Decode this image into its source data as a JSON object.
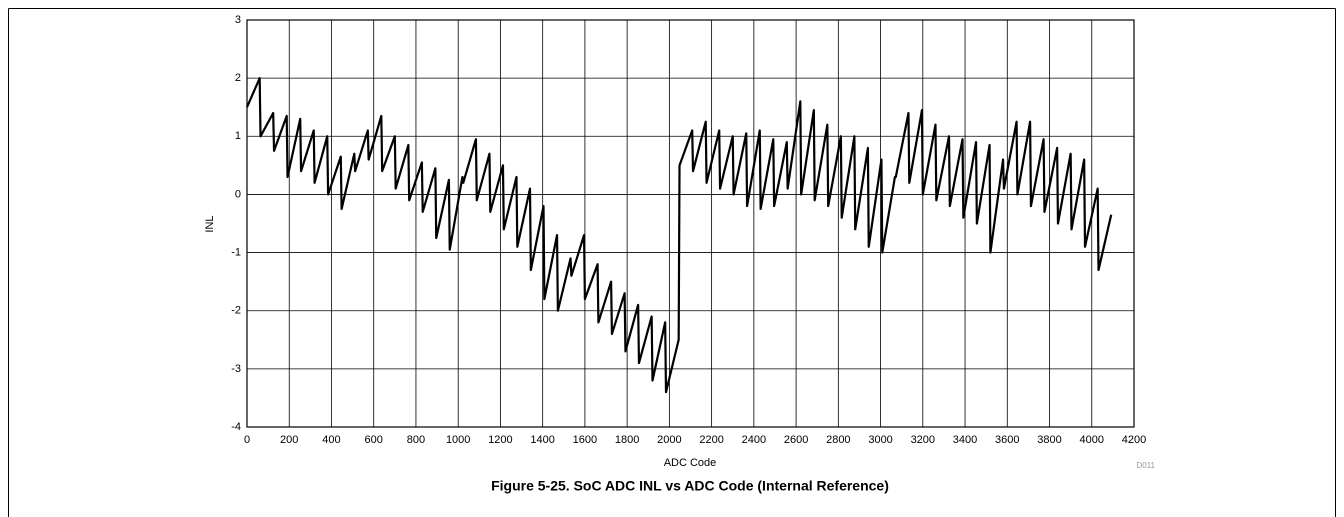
{
  "chart_data": {
    "type": "line",
    "caption": "Figure 5-25. SoC ADC INL vs ADC Code (Internal Reference)",
    "xlabel": "ADC Code",
    "ylabel": "INL",
    "note": "D011",
    "xlim": [
      0,
      4200
    ],
    "ylim": [
      -4,
      3
    ],
    "xticks": [
      0,
      200,
      400,
      600,
      800,
      1000,
      1200,
      1400,
      1600,
      1800,
      2000,
      2200,
      2400,
      2600,
      2800,
      3000,
      3200,
      3400,
      3600,
      3800,
      4000,
      4200
    ],
    "yticks": [
      -4,
      -3,
      -2,
      -1,
      0,
      1,
      2,
      3
    ],
    "grid": true,
    "x": [
      0,
      60,
      64,
      124,
      128,
      188,
      192,
      252,
      256,
      316,
      320,
      380,
      384,
      444,
      448,
      508,
      512,
      572,
      576,
      636,
      640,
      700,
      704,
      764,
      768,
      828,
      832,
      892,
      896,
      956,
      960,
      1020,
      1024,
      1084,
      1088,
      1148,
      1152,
      1212,
      1216,
      1276,
      1280,
      1340,
      1344,
      1404,
      1408,
      1468,
      1472,
      1532,
      1536,
      1596,
      1600,
      1660,
      1664,
      1724,
      1728,
      1788,
      1792,
      1852,
      1856,
      1916,
      1920,
      1980,
      1984,
      2044,
      2048,
      2108,
      2112,
      2172,
      2176,
      2236,
      2240,
      2300,
      2304,
      2364,
      2368,
      2428,
      2432,
      2492,
      2496,
      2556,
      2560,
      2620,
      2624,
      2684,
      2688,
      2748,
      2752,
      2812,
      2816,
      2876,
      2880,
      2940,
      2944,
      3004,
      3008,
      3068,
      3072,
      3132,
      3136,
      3196,
      3200,
      3260,
      3264,
      3324,
      3328,
      3388,
      3392,
      3452,
      3456,
      3516,
      3520,
      3580,
      3584,
      3644,
      3648,
      3708,
      3712,
      3772,
      3776,
      3836,
      3840,
      3900,
      3904,
      3964,
      3968,
      4028,
      4032,
      4092
    ],
    "series": [
      {
        "color": "#000000",
        "values": [
          1.5,
          2.0,
          1.0,
          1.4,
          0.75,
          1.35,
          0.3,
          1.3,
          0.4,
          1.1,
          0.2,
          1.0,
          0.0,
          0.65,
          -0.25,
          0.7,
          0.4,
          1.1,
          0.6,
          1.35,
          0.4,
          1.0,
          0.1,
          0.85,
          -0.1,
          0.55,
          -0.3,
          0.45,
          -0.75,
          0.25,
          -0.95,
          0.3,
          0.2,
          0.95,
          -0.1,
          0.7,
          -0.3,
          0.5,
          -0.6,
          0.3,
          -0.9,
          0.1,
          -1.3,
          -0.2,
          -1.8,
          -0.7,
          -2.0,
          -1.1,
          -1.4,
          -0.7,
          -1.8,
          -1.2,
          -2.2,
          -1.5,
          -2.4,
          -1.7,
          -2.7,
          -1.9,
          -2.9,
          -2.1,
          -3.2,
          -2.2,
          -3.4,
          -2.5,
          0.5,
          1.1,
          0.4,
          1.25,
          0.2,
          1.1,
          0.1,
          1.0,
          0.0,
          1.05,
          -0.2,
          1.1,
          -0.25,
          0.95,
          -0.2,
          0.9,
          0.1,
          1.6,
          0.0,
          1.45,
          -0.1,
          1.2,
          -0.2,
          1.0,
          -0.4,
          1.0,
          -0.6,
          0.8,
          -0.9,
          0.6,
          -1.0,
          0.3,
          0.3,
          1.4,
          0.2,
          1.45,
          0.0,
          1.2,
          -0.1,
          1.0,
          -0.2,
          0.95,
          -0.4,
          0.9,
          -0.5,
          0.85,
          -1.0,
          0.6,
          0.1,
          1.25,
          0.0,
          1.25,
          -0.2,
          0.95,
          -0.3,
          0.8,
          -0.5,
          0.7,
          -0.6,
          0.6,
          -0.9,
          0.1,
          -1.3,
          -0.35
        ]
      }
    ]
  }
}
